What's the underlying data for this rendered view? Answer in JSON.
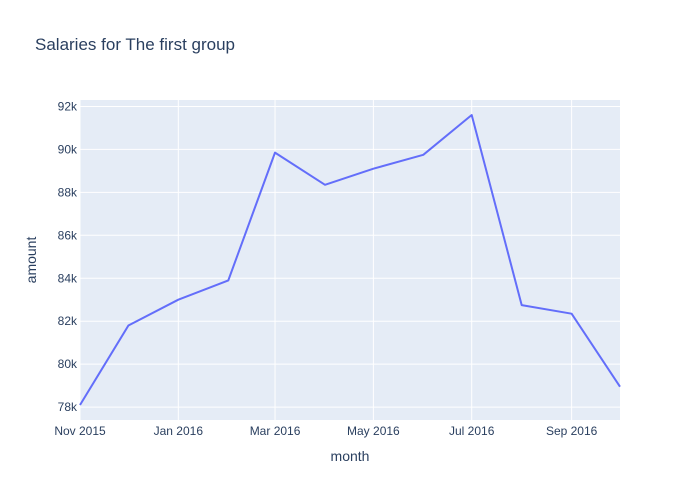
{
  "chart_data": {
    "type": "line",
    "title": "Salaries for The first group",
    "xlabel": "month",
    "ylabel": "amount",
    "x": [
      "2015-11-01",
      "2015-12-01",
      "2016-01-01",
      "2016-02-01",
      "2016-03-01",
      "2016-04-01",
      "2016-05-01",
      "2016-06-01",
      "2016-07-01",
      "2016-08-01",
      "2016-09-01",
      "2016-10-01"
    ],
    "series": [
      {
        "values": [
          78100,
          81800,
          83000,
          83900,
          89850,
          88350,
          89100,
          89750,
          91600,
          82750,
          82350,
          78950
        ]
      }
    ],
    "xlim": [
      "2015-11-01",
      "2016-10-01"
    ],
    "ylim": [
      77400,
      92300
    ],
    "x_ticks": [
      {
        "date": "2015-11-01",
        "label": "Nov 2015"
      },
      {
        "date": "2016-01-01",
        "label": "Jan 2016"
      },
      {
        "date": "2016-03-01",
        "label": "Mar 2016"
      },
      {
        "date": "2016-05-01",
        "label": "May 2016"
      },
      {
        "date": "2016-07-01",
        "label": "Jul 2016"
      },
      {
        "date": "2016-09-01",
        "label": "Sep 2016"
      }
    ],
    "y_ticks": [
      {
        "value": 78000,
        "label": "78k"
      },
      {
        "value": 80000,
        "label": "80k"
      },
      {
        "value": 82000,
        "label": "82k"
      },
      {
        "value": 84000,
        "label": "84k"
      },
      {
        "value": 86000,
        "label": "86k"
      },
      {
        "value": 88000,
        "label": "88k"
      },
      {
        "value": 90000,
        "label": "90k"
      },
      {
        "value": 92000,
        "label": "92k"
      }
    ],
    "grid": true,
    "colors": {
      "line": "#636efa",
      "plot_bg": "#e5ecf6",
      "grid": "#ffffff",
      "text": "#2a3f5f"
    }
  }
}
